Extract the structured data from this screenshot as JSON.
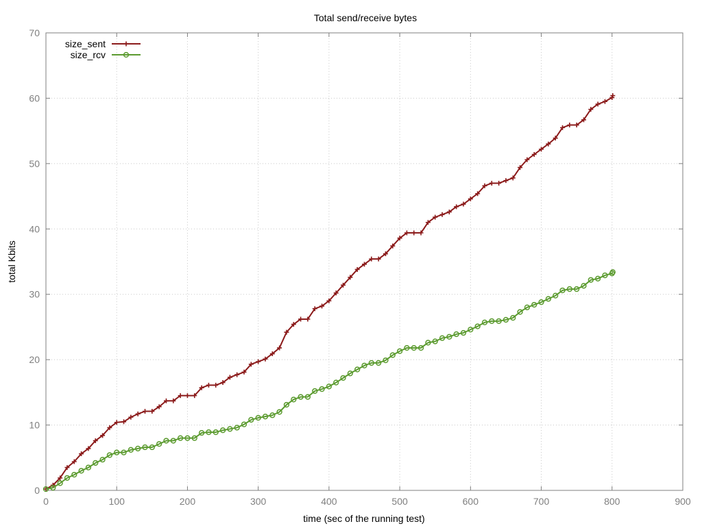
{
  "chart_data": {
    "type": "line",
    "title": "Total send/receive bytes",
    "xlabel": "time (sec of the running test)",
    "ylabel": "total Kbits",
    "xlim": [
      0,
      900
    ],
    "ylim": [
      0,
      70
    ],
    "xticks": [
      0,
      100,
      200,
      300,
      400,
      500,
      600,
      700,
      800,
      900
    ],
    "yticks": [
      0,
      10,
      20,
      30,
      40,
      50,
      60,
      70
    ],
    "grid": true,
    "legend_position": "top-left",
    "x": [
      0,
      10,
      20,
      30,
      40,
      50,
      60,
      70,
      80,
      90,
      100,
      110,
      120,
      130,
      140,
      150,
      160,
      170,
      180,
      190,
      200,
      210,
      220,
      230,
      240,
      250,
      260,
      270,
      280,
      290,
      300,
      310,
      320,
      330,
      340,
      350,
      360,
      370,
      380,
      390,
      400,
      410,
      420,
      430,
      440,
      450,
      460,
      470,
      480,
      490,
      500,
      510,
      520,
      530,
      540,
      550,
      560,
      570,
      580,
      590,
      600,
      610,
      620,
      630,
      640,
      650,
      660,
      670,
      680,
      690,
      700,
      710,
      720,
      730,
      740,
      750,
      760,
      770,
      780,
      790,
      800,
      801
    ],
    "series": [
      {
        "name": "size_sent",
        "color": "#8b1a1a",
        "marker": "plus",
        "values": [
          0.2,
          0.8,
          1.9,
          3.5,
          4.4,
          5.6,
          6.4,
          7.6,
          8.4,
          9.6,
          10.4,
          10.5,
          11.2,
          11.7,
          12.1,
          12.1,
          12.8,
          13.7,
          13.7,
          14.5,
          14.5,
          14.5,
          15.7,
          16.1,
          16.1,
          16.5,
          17.3,
          17.7,
          18.1,
          19.3,
          19.7,
          20.1,
          20.9,
          21.8,
          24.2,
          25.4,
          26.2,
          26.2,
          27.8,
          28.2,
          29.0,
          30.2,
          31.4,
          32.6,
          33.8,
          34.6,
          35.4,
          35.4,
          36.2,
          37.4,
          38.6,
          39.4,
          39.4,
          39.4,
          41.0,
          41.8,
          42.2,
          42.6,
          43.4,
          43.8,
          44.6,
          45.4,
          46.6,
          47.0,
          47.0,
          47.4,
          47.8,
          49.4,
          50.6,
          51.4,
          52.2,
          53.0,
          53.9,
          55.5,
          55.9,
          55.9,
          56.7,
          58.3,
          59.1,
          59.5,
          60.1,
          60.4
        ]
      },
      {
        "name": "size_rcv",
        "color": "#5a9a2e",
        "marker": "circle",
        "values": [
          0.2,
          0.4,
          1.1,
          1.9,
          2.4,
          3.0,
          3.5,
          4.2,
          4.7,
          5.4,
          5.8,
          5.8,
          6.2,
          6.4,
          6.6,
          6.6,
          7.1,
          7.6,
          7.6,
          8.0,
          8.0,
          8.0,
          8.8,
          8.9,
          8.9,
          9.2,
          9.4,
          9.6,
          10.1,
          10.8,
          11.1,
          11.3,
          11.5,
          12.0,
          13.1,
          13.9,
          14.3,
          14.3,
          15.2,
          15.5,
          15.9,
          16.5,
          17.2,
          17.9,
          18.5,
          19.1,
          19.5,
          19.5,
          19.9,
          20.7,
          21.3,
          21.8,
          21.8,
          21.8,
          22.6,
          22.8,
          23.3,
          23.5,
          23.9,
          24.1,
          24.6,
          25.1,
          25.7,
          25.9,
          25.9,
          26.1,
          26.4,
          27.3,
          28.0,
          28.4,
          28.8,
          29.3,
          29.8,
          30.6,
          30.8,
          30.8,
          31.3,
          32.2,
          32.4,
          32.9,
          33.2,
          33.4
        ]
      }
    ]
  }
}
